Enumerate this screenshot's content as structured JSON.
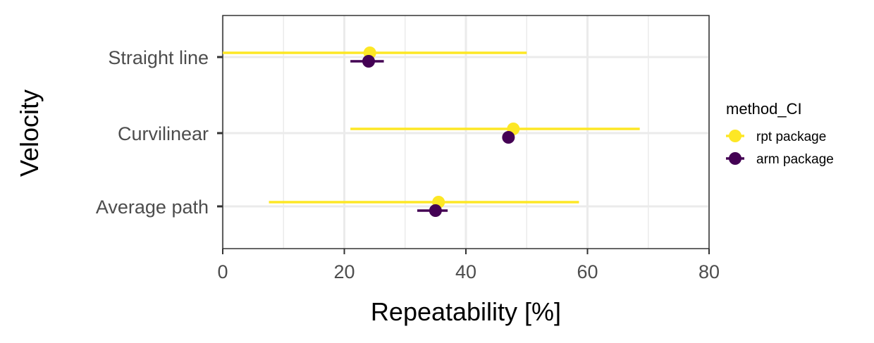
{
  "chart_data": {
    "type": "scatter",
    "orientation": "horizontal",
    "xlabel": "Repeatability [%]",
    "ylabel": "Velocity",
    "xlim": [
      0,
      80
    ],
    "xticks": [
      0,
      20,
      40,
      60,
      80
    ],
    "categories": [
      "Straight line",
      "Curvilinear",
      "Average path"
    ],
    "grid": true,
    "legend_placement": "right",
    "legend_title": "method_CI",
    "series": [
      {
        "name": "rpt package",
        "color": "#fde725",
        "values": [
          24.2,
          47.8,
          35.5
        ],
        "ci_low": [
          0,
          21.0,
          7.6
        ],
        "ci_high": [
          50.0,
          68.6,
          58.6
        ]
      },
      {
        "name": "arm package",
        "color": "#440154",
        "values": [
          24.0,
          47.0,
          35.0
        ],
        "ci_low": [
          21.0,
          47.0,
          32.0
        ],
        "ci_high": [
          26.5,
          47.0,
          37.0
        ]
      }
    ]
  }
}
